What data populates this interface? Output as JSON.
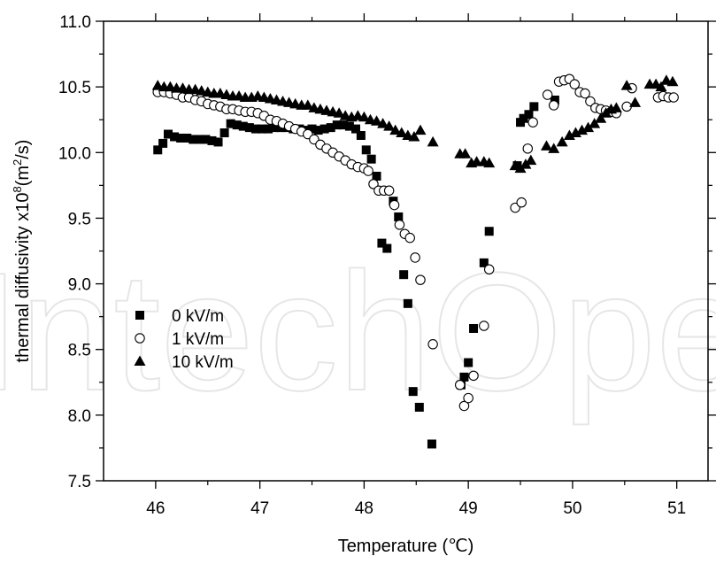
{
  "chart_data": {
    "type": "scatter",
    "xlabel": "Temperature (℃)",
    "ylabel_main": "thermal diffusivity x10",
    "ylabel_exp": "8",
    "ylabel_unit_pre": "(m",
    "ylabel_unit_exp": "2",
    "ylabel_unit_post": "/s)",
    "xlim": [
      45.5,
      51.3
    ],
    "ylim": [
      7.5,
      11.0
    ],
    "xticks": [
      "46",
      "47",
      "48",
      "49",
      "50",
      "51"
    ],
    "yticks": [
      "7.5",
      "8.0",
      "8.5",
      "9.0",
      "9.5",
      "10.0",
      "10.5",
      "11.0"
    ],
    "grid": false,
    "legend_position": "left-middle",
    "watermark": "IntechOpen",
    "series": [
      {
        "name": "0 kV/m",
        "marker": "filled-square",
        "points": [
          [
            46.02,
            10.02
          ],
          [
            46.07,
            10.07
          ],
          [
            46.12,
            10.14
          ],
          [
            46.18,
            10.12
          ],
          [
            46.24,
            10.11
          ],
          [
            46.3,
            10.11
          ],
          [
            46.36,
            10.1
          ],
          [
            46.42,
            10.1
          ],
          [
            46.48,
            10.1
          ],
          [
            46.54,
            10.09
          ],
          [
            46.6,
            10.08
          ],
          [
            46.66,
            10.15
          ],
          [
            46.72,
            10.22
          ],
          [
            46.78,
            10.21
          ],
          [
            46.84,
            10.2
          ],
          [
            46.9,
            10.19
          ],
          [
            46.96,
            10.18
          ],
          [
            47.02,
            10.18
          ],
          [
            47.08,
            10.18
          ],
          [
            47.14,
            10.19
          ],
          [
            47.2,
            10.19
          ],
          [
            47.26,
            10.19
          ],
          [
            47.32,
            10.18
          ],
          [
            47.38,
            10.18
          ],
          [
            47.44,
            10.17
          ],
          [
            47.5,
            10.18
          ],
          [
            47.56,
            10.17
          ],
          [
            47.62,
            10.18
          ],
          [
            47.68,
            10.19
          ],
          [
            47.74,
            10.21
          ],
          [
            47.8,
            10.21
          ],
          [
            47.86,
            10.2
          ],
          [
            47.92,
            10.18
          ],
          [
            47.97,
            10.13
          ],
          [
            48.02,
            10.02
          ],
          [
            48.07,
            9.95
          ],
          [
            48.12,
            9.82
          ],
          [
            48.17,
            9.31
          ],
          [
            48.22,
            9.27
          ],
          [
            48.28,
            9.63
          ],
          [
            48.33,
            9.51
          ],
          [
            48.38,
            9.07
          ],
          [
            48.42,
            8.85
          ],
          [
            48.47,
            8.18
          ],
          [
            48.53,
            8.06
          ],
          [
            48.65,
            7.78
          ],
          [
            48.93,
            8.23
          ],
          [
            48.96,
            8.29
          ],
          [
            49.0,
            8.4
          ],
          [
            49.05,
            8.66
          ],
          [
            49.15,
            9.16
          ],
          [
            49.2,
            9.4
          ],
          [
            49.47,
            9.9
          ],
          [
            49.5,
            10.23
          ],
          [
            49.53,
            10.26
          ],
          [
            49.58,
            10.29
          ],
          [
            49.63,
            10.35
          ],
          [
            49.83,
            10.4
          ]
        ]
      },
      {
        "name": "1 kV/m",
        "marker": "open-circle",
        "points": [
          [
            46.02,
            10.46
          ],
          [
            46.08,
            10.46
          ],
          [
            46.14,
            10.45
          ],
          [
            46.2,
            10.44
          ],
          [
            46.26,
            10.42
          ],
          [
            46.32,
            10.42
          ],
          [
            46.38,
            10.4
          ],
          [
            46.44,
            10.39
          ],
          [
            46.5,
            10.37
          ],
          [
            46.56,
            10.36
          ],
          [
            46.62,
            10.35
          ],
          [
            46.68,
            10.33
          ],
          [
            46.74,
            10.33
          ],
          [
            46.8,
            10.32
          ],
          [
            46.86,
            10.31
          ],
          [
            46.92,
            10.31
          ],
          [
            46.98,
            10.3
          ],
          [
            47.04,
            10.28
          ],
          [
            47.1,
            10.25
          ],
          [
            47.16,
            10.24
          ],
          [
            47.22,
            10.22
          ],
          [
            47.28,
            10.2
          ],
          [
            47.34,
            10.18
          ],
          [
            47.4,
            10.16
          ],
          [
            47.46,
            10.14
          ],
          [
            47.52,
            10.1
          ],
          [
            47.58,
            10.06
          ],
          [
            47.64,
            10.03
          ],
          [
            47.7,
            10.0
          ],
          [
            47.76,
            9.97
          ],
          [
            47.82,
            9.94
          ],
          [
            47.88,
            9.91
          ],
          [
            47.94,
            9.89
          ],
          [
            48.0,
            9.88
          ],
          [
            48.04,
            9.86
          ],
          [
            48.09,
            9.76
          ],
          [
            48.14,
            9.71
          ],
          [
            48.19,
            9.71
          ],
          [
            48.24,
            9.71
          ],
          [
            48.29,
            9.6
          ],
          [
            48.34,
            9.45
          ],
          [
            48.39,
            9.38
          ],
          [
            48.44,
            9.35
          ],
          [
            48.49,
            9.2
          ],
          [
            48.54,
            9.03
          ],
          [
            48.66,
            8.54
          ],
          [
            48.92,
            8.23
          ],
          [
            48.96,
            8.07
          ],
          [
            49.0,
            8.13
          ],
          [
            49.05,
            8.3
          ],
          [
            49.15,
            8.68
          ],
          [
            49.2,
            9.11
          ],
          [
            49.45,
            9.58
          ],
          [
            49.51,
            9.62
          ],
          [
            49.57,
            10.03
          ],
          [
            49.62,
            10.23
          ],
          [
            49.76,
            10.44
          ],
          [
            49.82,
            10.36
          ],
          [
            49.87,
            10.54
          ],
          [
            49.92,
            10.55
          ],
          [
            49.97,
            10.56
          ],
          [
            50.02,
            10.52
          ],
          [
            50.07,
            10.46
          ],
          [
            50.12,
            10.45
          ],
          [
            50.17,
            10.39
          ],
          [
            50.22,
            10.34
          ],
          [
            50.27,
            10.33
          ],
          [
            50.32,
            10.32
          ],
          [
            50.37,
            10.31
          ],
          [
            50.42,
            10.3
          ],
          [
            50.52,
            10.35
          ],
          [
            50.57,
            10.49
          ],
          [
            50.82,
            10.42
          ],
          [
            50.87,
            10.43
          ],
          [
            50.92,
            10.42
          ],
          [
            50.97,
            10.42
          ]
        ]
      },
      {
        "name": "10 kV/m",
        "marker": "filled-triangle",
        "points": [
          [
            46.02,
            10.51
          ],
          [
            46.08,
            10.5
          ],
          [
            46.14,
            10.5
          ],
          [
            46.2,
            10.49
          ],
          [
            46.26,
            10.49
          ],
          [
            46.32,
            10.48
          ],
          [
            46.38,
            10.48
          ],
          [
            46.44,
            10.47
          ],
          [
            46.5,
            10.46
          ],
          [
            46.56,
            10.45
          ],
          [
            46.62,
            10.45
          ],
          [
            46.68,
            10.44
          ],
          [
            46.74,
            10.43
          ],
          [
            46.8,
            10.43
          ],
          [
            46.86,
            10.42
          ],
          [
            46.92,
            10.42
          ],
          [
            46.98,
            10.43
          ],
          [
            47.04,
            10.42
          ],
          [
            47.1,
            10.41
          ],
          [
            47.16,
            10.4
          ],
          [
            47.22,
            10.39
          ],
          [
            47.28,
            10.38
          ],
          [
            47.34,
            10.37
          ],
          [
            47.4,
            10.36
          ],
          [
            47.46,
            10.36
          ],
          [
            47.52,
            10.34
          ],
          [
            47.58,
            10.33
          ],
          [
            47.64,
            10.32
          ],
          [
            47.7,
            10.31
          ],
          [
            47.76,
            10.3
          ],
          [
            47.82,
            10.28
          ],
          [
            47.88,
            10.27
          ],
          [
            47.94,
            10.28
          ],
          [
            48.0,
            10.27
          ],
          [
            48.06,
            10.25
          ],
          [
            48.12,
            10.24
          ],
          [
            48.18,
            10.22
          ],
          [
            48.24,
            10.2
          ],
          [
            48.3,
            10.17
          ],
          [
            48.36,
            10.15
          ],
          [
            48.42,
            10.13
          ],
          [
            48.48,
            10.12
          ],
          [
            48.54,
            10.17
          ],
          [
            48.66,
            10.08
          ],
          [
            48.92,
            9.99
          ],
          [
            48.97,
            9.99
          ],
          [
            49.03,
            9.92
          ],
          [
            49.08,
            9.93
          ],
          [
            49.15,
            9.93
          ],
          [
            49.2,
            9.92
          ],
          [
            49.45,
            9.9
          ],
          [
            49.5,
            9.88
          ],
          [
            49.55,
            9.91
          ],
          [
            49.6,
            9.94
          ],
          [
            49.75,
            10.05
          ],
          [
            49.82,
            10.03
          ],
          [
            49.9,
            10.08
          ],
          [
            49.97,
            10.13
          ],
          [
            50.03,
            10.15
          ],
          [
            50.09,
            10.17
          ],
          [
            50.15,
            10.19
          ],
          [
            50.21,
            10.22
          ],
          [
            50.27,
            10.26
          ],
          [
            50.32,
            10.3
          ],
          [
            50.37,
            10.33
          ],
          [
            50.42,
            10.34
          ],
          [
            50.52,
            10.51
          ],
          [
            50.6,
            10.38
          ],
          [
            50.74,
            10.52
          ],
          [
            50.8,
            10.52
          ],
          [
            50.85,
            10.5
          ],
          [
            50.9,
            10.55
          ],
          [
            50.96,
            10.54
          ]
        ]
      }
    ]
  }
}
